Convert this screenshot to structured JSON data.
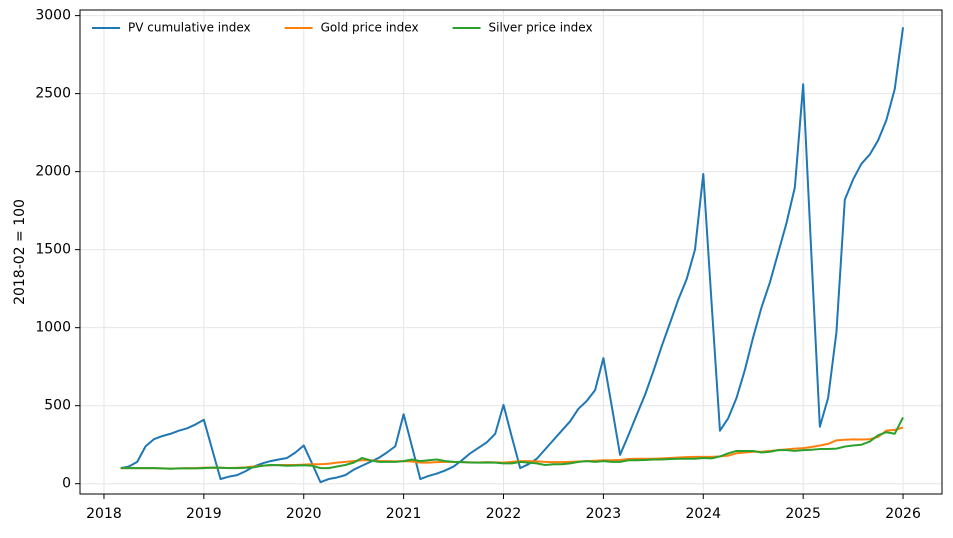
{
  "chart_data": {
    "type": "line",
    "ylabel": "2018-02 = 100",
    "x": [
      2018.167,
      2018.25,
      2018.333,
      2018.417,
      2018.5,
      2018.583,
      2018.667,
      2018.75,
      2018.833,
      2018.917,
      2019,
      2019.083,
      2019.167,
      2019.25,
      2019.333,
      2019.417,
      2019.5,
      2019.583,
      2019.667,
      2019.75,
      2019.833,
      2019.917,
      2020,
      2020.083,
      2020.167,
      2020.25,
      2020.333,
      2020.417,
      2020.5,
      2020.583,
      2020.667,
      2020.75,
      2020.833,
      2020.917,
      2021,
      2021.083,
      2021.167,
      2021.25,
      2021.333,
      2021.417,
      2021.5,
      2021.583,
      2021.667,
      2021.75,
      2021.833,
      2021.917,
      2022,
      2022.083,
      2022.167,
      2022.25,
      2022.333,
      2022.417,
      2022.5,
      2022.583,
      2022.667,
      2022.75,
      2022.833,
      2022.917,
      2023,
      2023.083,
      2023.167,
      2023.25,
      2023.333,
      2023.417,
      2023.5,
      2023.583,
      2023.667,
      2023.75,
      2023.833,
      2023.917,
      2024,
      2024.083,
      2024.167,
      2024.25,
      2024.333,
      2024.417,
      2024.5,
      2024.583,
      2024.667,
      2024.75,
      2024.833,
      2024.917,
      2025,
      2025.083,
      2025.167,
      2025.25,
      2025.333,
      2025.417,
      2025.5,
      2025.583,
      2025.667,
      2025.75,
      2025.833,
      2025.917,
      2026
    ],
    "series": [
      {
        "name": "PV cumulative index",
        "color": "#1f77b4",
        "values": [
          100,
          110,
          140,
          240,
          285,
          305,
          320,
          340,
          355,
          380,
          410,
          220,
          30,
          45,
          55,
          80,
          110,
          130,
          145,
          155,
          165,
          200,
          245,
          130,
          10,
          30,
          40,
          55,
          90,
          115,
          140,
          165,
          200,
          240,
          445,
          240,
          30,
          50,
          65,
          85,
          110,
          150,
          195,
          230,
          265,
          320,
          505,
          300,
          100,
          125,
          160,
          220,
          280,
          340,
          400,
          480,
          530,
          600,
          805,
          500,
          185,
          310,
          440,
          570,
          720,
          880,
          1030,
          1180,
          1310,
          1500,
          1985,
          1160,
          340,
          420,
          550,
          730,
          940,
          1130,
          1290,
          1480,
          1670,
          1900,
          2560,
          1460,
          365,
          550,
          970,
          1820,
          1950,
          2050,
          2110,
          2200,
          2330,
          2530,
          2925
        ]
      },
      {
        "name": "Gold price index",
        "color": "#ff7f0e",
        "values": [
          100,
          100,
          100,
          100,
          100,
          98,
          97,
          98,
          100,
          100,
          102,
          103,
          102,
          101,
          102,
          105,
          110,
          115,
          118,
          120,
          120,
          120,
          122,
          125,
          125,
          128,
          135,
          140,
          145,
          150,
          150,
          145,
          145,
          143,
          145,
          142,
          135,
          135,
          138,
          140,
          140,
          138,
          137,
          136,
          138,
          137,
          135,
          140,
          145,
          145,
          143,
          140,
          138,
          138,
          140,
          142,
          145,
          147,
          150,
          150,
          152,
          158,
          160,
          160,
          160,
          162,
          165,
          168,
          170,
          172,
          172,
          172,
          175,
          180,
          195,
          200,
          205,
          205,
          210,
          215,
          220,
          225,
          228,
          235,
          245,
          255,
          278,
          282,
          284,
          283,
          285,
          300,
          340,
          345,
          360
        ]
      },
      {
        "name": "Silver price index",
        "color": "#2ca02c",
        "values": [
          100,
          100,
          100,
          100,
          100,
          98,
          96,
          98,
          98,
          98,
          100,
          103,
          102,
          100,
          100,
          102,
          105,
          115,
          120,
          118,
          115,
          117,
          118,
          115,
          100,
          100,
          110,
          120,
          135,
          165,
          150,
          140,
          140,
          140,
          145,
          155,
          145,
          150,
          155,
          145,
          140,
          138,
          136,
          135,
          136,
          135,
          130,
          130,
          140,
          135,
          130,
          120,
          125,
          125,
          130,
          140,
          145,
          140,
          145,
          140,
          140,
          150,
          150,
          152,
          155,
          155,
          158,
          160,
          160,
          160,
          165,
          162,
          175,
          195,
          210,
          210,
          210,
          200,
          205,
          215,
          215,
          210,
          215,
          218,
          222,
          222,
          225,
          238,
          245,
          250,
          270,
          310,
          330,
          320,
          425
        ]
      }
    ],
    "xlim": [
      2017.76,
      2026.39
    ],
    "xticks": [
      2018,
      2019,
      2020,
      2021,
      2022,
      2023,
      2024,
      2025,
      2026
    ],
    "ylim": [
      -66,
      3036
    ],
    "yticks": [
      0,
      500,
      1000,
      1500,
      2000,
      2500,
      3000
    ],
    "grid": true,
    "legend": "upper left"
  }
}
